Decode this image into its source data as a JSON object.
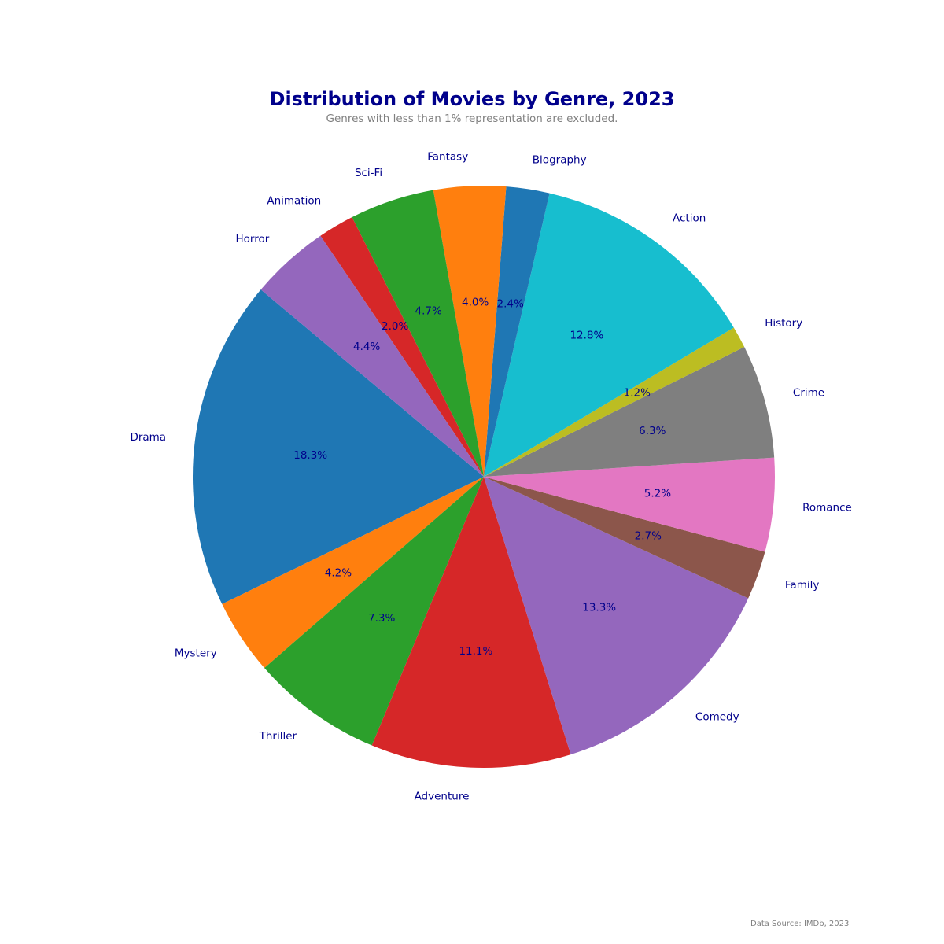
{
  "chart_data": {
    "type": "pie",
    "title": "Distribution of Movies by Genre, 2023",
    "subtitle": "Genres with less than 1% representation are excluded.",
    "source": "Data Source: IMDb, 2023",
    "start_angle_deg": 140,
    "direction": "counterclockwise",
    "slices": [
      {
        "label": "Drama",
        "value": 18.3,
        "pct_text": "18.3%",
        "color": "#1f77b4"
      },
      {
        "label": "Mystery",
        "value": 4.2,
        "pct_text": "4.2%",
        "color": "#ff7f0e"
      },
      {
        "label": "Thriller",
        "value": 7.3,
        "pct_text": "7.3%",
        "color": "#2ca02c"
      },
      {
        "label": "Adventure",
        "value": 11.1,
        "pct_text": "11.1%",
        "color": "#d62728"
      },
      {
        "label": "Comedy",
        "value": 13.3,
        "pct_text": "13.3%",
        "color": "#9467bd"
      },
      {
        "label": "Family",
        "value": 2.7,
        "pct_text": "2.7%",
        "color": "#8c564b"
      },
      {
        "label": "Romance",
        "value": 5.2,
        "pct_text": "5.2%",
        "color": "#e377c2"
      },
      {
        "label": "Crime",
        "value": 6.3,
        "pct_text": "6.3%",
        "color": "#7f7f7f"
      },
      {
        "label": "History",
        "value": 1.2,
        "pct_text": "1.2%",
        "color": "#bcbd22"
      },
      {
        "label": "Action",
        "value": 12.8,
        "pct_text": "12.8%",
        "color": "#17becf"
      },
      {
        "label": "Biography",
        "value": 2.4,
        "pct_text": "2.4%",
        "color": "#1f77b4"
      },
      {
        "label": "Fantasy",
        "value": 4.0,
        "pct_text": "4.0%",
        "color": "#ff7f0e"
      },
      {
        "label": "Sci-Fi",
        "value": 4.7,
        "pct_text": "4.7%",
        "color": "#2ca02c"
      },
      {
        "label": "Animation",
        "value": 2.0,
        "pct_text": "2.0%",
        "color": "#d62728"
      },
      {
        "label": "Horror",
        "value": 4.4,
        "pct_text": "4.4%",
        "color": "#9467bd"
      }
    ],
    "label_color": "#00008b",
    "title_color": "#00008b",
    "subtitle_color": "#808080"
  }
}
